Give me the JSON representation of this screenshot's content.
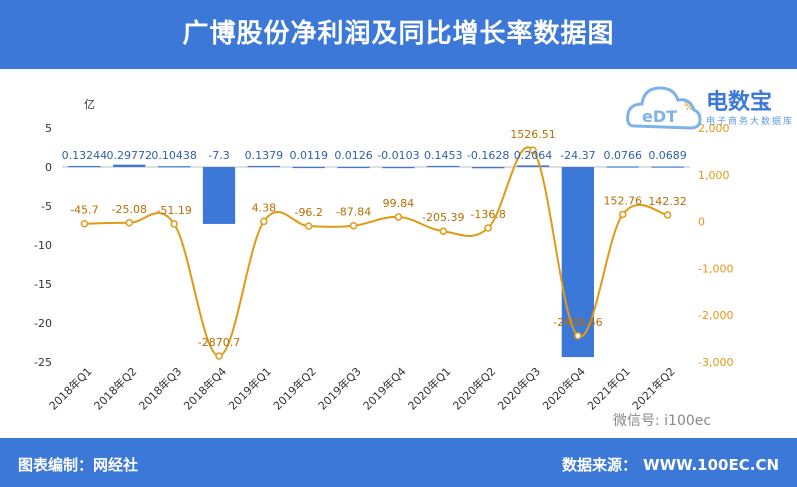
{
  "header": {
    "title": "广博股份净利润及同比增长率数据图"
  },
  "footer": {
    "left": "图表编制：网经社",
    "right_label": "数据来源：",
    "right_value": "WWW.100EC.CN"
  },
  "watermark": {
    "logo_text": "电数宝",
    "logo_sub": "电子商务大数据库",
    "wechat": "微信号: i100ec",
    "icon": "cloud-edt-logo-icon"
  },
  "colors": {
    "bar": "#3b78d8",
    "line": "#e09a16",
    "header": "#3b78d8"
  },
  "chart_data": {
    "type": "bar",
    "categories": [
      "2018年Q1",
      "2018年Q2",
      "2018年Q3",
      "2018年Q4",
      "2019年Q1",
      "2019年Q2",
      "2019年Q3",
      "2019年Q4",
      "2020年Q1",
      "2020年Q2",
      "2020年Q3",
      "2020年Q4",
      "2021年Q1",
      "2021年Q2"
    ],
    "series": [
      {
        "kind": "bar",
        "axis": "left",
        "values": [
          0.13244,
          0.29772,
          0.10438,
          -7.3,
          0.1379,
          0.0119,
          0.0126,
          -0.0103,
          0.1453,
          -0.1628,
          0.2064,
          -24.37,
          0.0766,
          0.0689
        ],
        "labels": [
          "0.13244",
          "0.29772",
          "0.10438",
          "-7.3",
          "0.1379",
          "0.0119",
          "0.0126",
          "-0.0103",
          "0.1453",
          "-0.1628",
          "0.2064",
          "-24.37",
          "0.0766",
          "0.0689"
        ]
      },
      {
        "kind": "line",
        "axis": "right",
        "values": [
          -45.7,
          -25.08,
          -51.19,
          -2870.7,
          4.38,
          -96.2,
          -87.84,
          99.84,
          -205.39,
          -136.8,
          1526.51,
          -2439.56,
          152.76,
          142.32
        ],
        "labels": [
          "-45.7",
          "-25.08",
          "-51.19",
          "-2870.7",
          "4.38",
          "-96.2",
          "-87.84",
          "99.84",
          "-205.39",
          "-136.8",
          "1526.51",
          "-2439.56",
          "152.76",
          "142.32"
        ]
      }
    ],
    "y_left": {
      "unit": "亿",
      "ylim": [
        -25,
        5
      ],
      "ticks": [
        "5",
        "0",
        "-5",
        "-10",
        "-15",
        "-20",
        "-25"
      ]
    },
    "y_right": {
      "unit": "%",
      "ylim": [
        -3000,
        2000
      ],
      "ticks": [
        "2,000",
        "1,000",
        "0",
        "-1,000",
        "-2,000",
        "-3,000"
      ]
    },
    "grid": false,
    "legend": "none"
  }
}
